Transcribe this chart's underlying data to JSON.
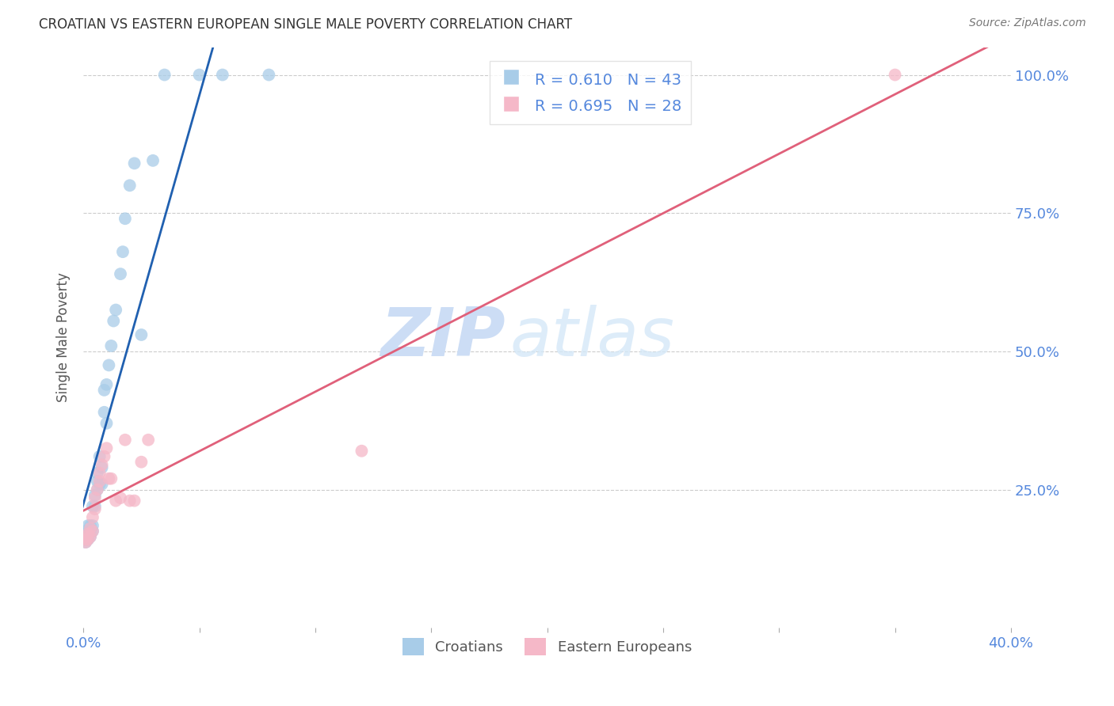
{
  "title": "CROATIAN VS EASTERN EUROPEAN SINGLE MALE POVERTY CORRELATION CHART",
  "source": "Source: ZipAtlas.com",
  "ylabel": "Single Male Poverty",
  "watermark_zip": "ZIP",
  "watermark_atlas": "atlas",
  "legend_croatians": "Croatians",
  "legend_eastern": "Eastern Europeans",
  "R_croatians": 0.61,
  "N_croatians": 43,
  "R_eastern": 0.695,
  "N_eastern": 28,
  "blue_color": "#a8cce8",
  "pink_color": "#f5b8c8",
  "blue_line_color": "#2060b0",
  "pink_line_color": "#e0607a",
  "axis_label_color": "#5588dd",
  "title_color": "#333333",
  "background_color": "#ffffff",
  "grid_color": "#cccccc",
  "croatians_x": [
    0.001,
    0.001,
    0.001,
    0.001,
    0.001,
    0.002,
    0.002,
    0.002,
    0.002,
    0.003,
    0.003,
    0.003,
    0.004,
    0.004,
    0.004,
    0.005,
    0.005,
    0.006,
    0.006,
    0.006,
    0.007,
    0.007,
    0.008,
    0.008,
    0.009,
    0.009,
    0.01,
    0.01,
    0.011,
    0.012,
    0.013,
    0.014,
    0.016,
    0.017,
    0.018,
    0.02,
    0.022,
    0.025,
    0.03,
    0.035,
    0.05,
    0.06,
    0.08
  ],
  "croatians_y": [
    0.155,
    0.16,
    0.165,
    0.17,
    0.175,
    0.16,
    0.165,
    0.17,
    0.185,
    0.165,
    0.175,
    0.185,
    0.175,
    0.185,
    0.22,
    0.22,
    0.24,
    0.25,
    0.265,
    0.28,
    0.26,
    0.31,
    0.26,
    0.29,
    0.39,
    0.43,
    0.37,
    0.44,
    0.475,
    0.51,
    0.555,
    0.575,
    0.64,
    0.68,
    0.74,
    0.8,
    0.84,
    0.53,
    0.845,
    1.0,
    1.0,
    1.0,
    1.0
  ],
  "eastern_x": [
    0.001,
    0.001,
    0.001,
    0.002,
    0.002,
    0.003,
    0.003,
    0.004,
    0.004,
    0.005,
    0.005,
    0.006,
    0.007,
    0.007,
    0.008,
    0.009,
    0.01,
    0.011,
    0.012,
    0.014,
    0.016,
    0.018,
    0.02,
    0.022,
    0.025,
    0.028,
    0.12,
    0.35
  ],
  "eastern_y": [
    0.155,
    0.16,
    0.165,
    0.16,
    0.17,
    0.165,
    0.18,
    0.175,
    0.2,
    0.215,
    0.235,
    0.25,
    0.265,
    0.28,
    0.295,
    0.31,
    0.325,
    0.27,
    0.27,
    0.23,
    0.235,
    0.34,
    0.23,
    0.23,
    0.3,
    0.34,
    0.32,
    1.0
  ],
  "xlim": [
    0.0,
    0.4
  ],
  "ylim": [
    0.0,
    1.05
  ],
  "xticks": [
    0.0,
    0.05,
    0.1,
    0.15,
    0.2,
    0.25,
    0.3,
    0.35,
    0.4
  ],
  "yticks_right": [
    0.25,
    0.5,
    0.75,
    1.0
  ],
  "ytick_labels_right": [
    "25.0%",
    "50.0%",
    "75.0%",
    "100.0%"
  ]
}
